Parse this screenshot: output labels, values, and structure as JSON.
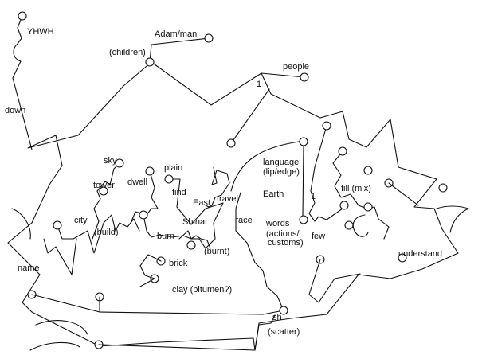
{
  "labels": {
    "yhwh": "YHWH",
    "adam": "Adam/man",
    "children": "(children)",
    "people": "people",
    "one_top": "1",
    "down": "down",
    "sky": "sky",
    "plain": "plain",
    "tower": "tower",
    "dwell": "dwell",
    "find": "find",
    "language": "language",
    "lip_edge": "(lip/edge)",
    "earth_initial": "E",
    "earth_rest": "arth",
    "travel": "travel",
    "city": "city",
    "east": "East",
    "shinar": "Shinar",
    "build": "(build)",
    "one_mid": "1",
    "fill": "fill (mix)",
    "face": "face",
    "words": "words",
    "actions": "(actions/",
    "customs": "customs)",
    "few": "few",
    "burn": "burn",
    "burnt": "(burnt)",
    "brick": "brick",
    "name": "name",
    "understand": "understand",
    "clay": "clay (bitumen?)",
    "sh": "sh",
    "scatter": "(scatter)"
  }
}
